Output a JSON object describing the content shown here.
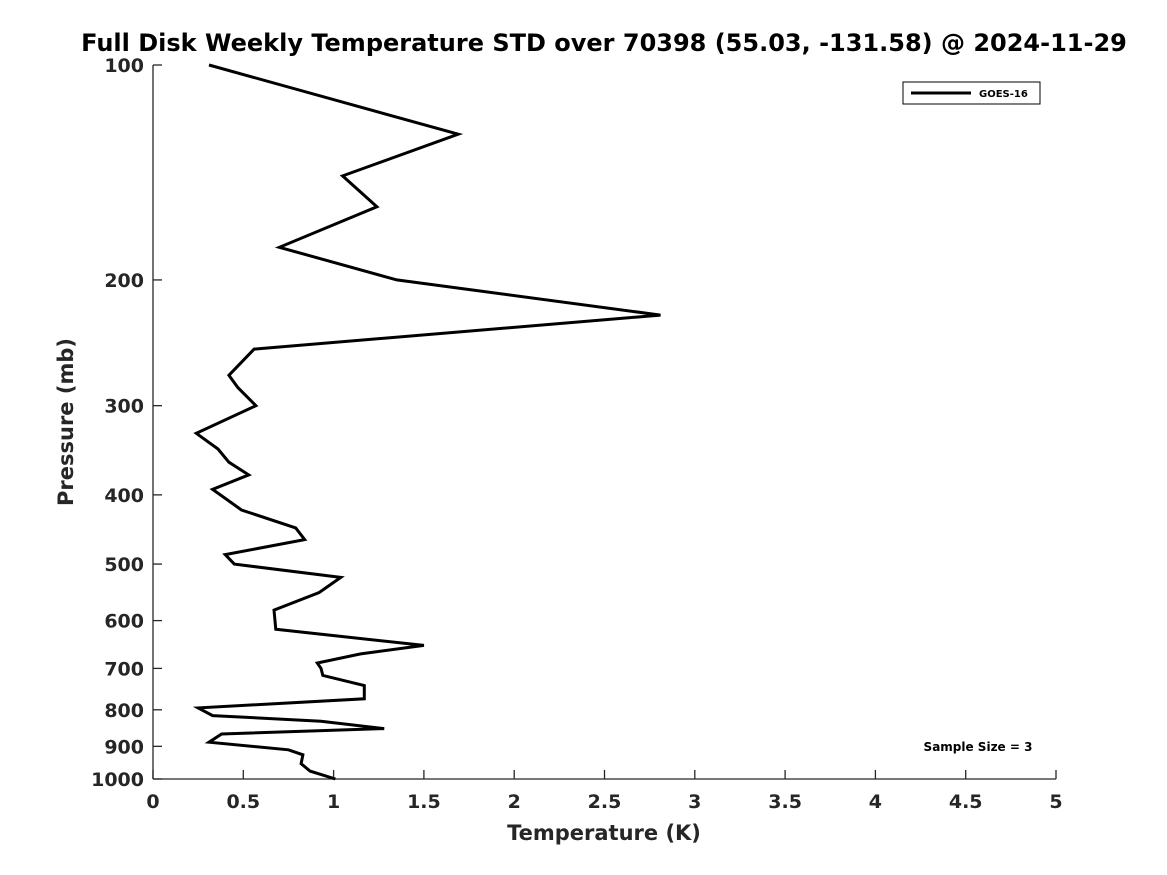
{
  "chart_data": {
    "type": "line",
    "title": "Full Disk Weekly Temperature STD over 70398 (55.03, -131.58) @ 2024-11-29",
    "xlabel": "Temperature (K)",
    "ylabel": "Pressure (mb)",
    "xlim": [
      0,
      5
    ],
    "ylim": [
      100,
      1000
    ],
    "y_scale": "log",
    "y_reversed": true,
    "x_ticks": [
      "0",
      "0.5",
      "1",
      "1.5",
      "2",
      "2.5",
      "3",
      "3.5",
      "4",
      "4.5",
      "5"
    ],
    "y_ticks": [
      "100",
      "200",
      "300",
      "400",
      "500",
      "600",
      "700",
      "800",
      "900",
      "1000"
    ],
    "grid": false,
    "legend_position": "top-right",
    "series": [
      {
        "name": "GOES-16",
        "color": "#000000",
        "x": [
          0.31,
          1.69,
          1.05,
          1.24,
          0.7,
          1.35,
          2.81,
          0.56,
          0.42,
          0.47,
          0.57,
          0.24,
          0.36,
          0.42,
          0.53,
          0.33,
          0.49,
          0.79,
          0.84,
          0.4,
          0.45,
          1.04,
          0.92,
          0.67,
          0.68,
          1.5,
          1.15,
          0.91,
          0.93,
          0.94,
          1.17,
          1.17,
          0.25,
          0.33,
          0.93,
          1.28,
          0.38,
          0.31,
          0.75,
          0.83,
          0.82,
          0.87,
          1.01
        ],
        "y": [
          100,
          125,
          143,
          158,
          180,
          200,
          224,
          250,
          272,
          283,
          300,
          328,
          345,
          360,
          375,
          393,
          420,
          445,
          462,
          485,
          500,
          522,
          548,
          580,
          617,
          650,
          668,
          688,
          700,
          716,
          740,
          772,
          795,
          815,
          830,
          850,
          865,
          888,
          910,
          925,
          952,
          975,
          1000
        ]
      }
    ],
    "annotations": [
      "Sample Size = 3"
    ]
  }
}
